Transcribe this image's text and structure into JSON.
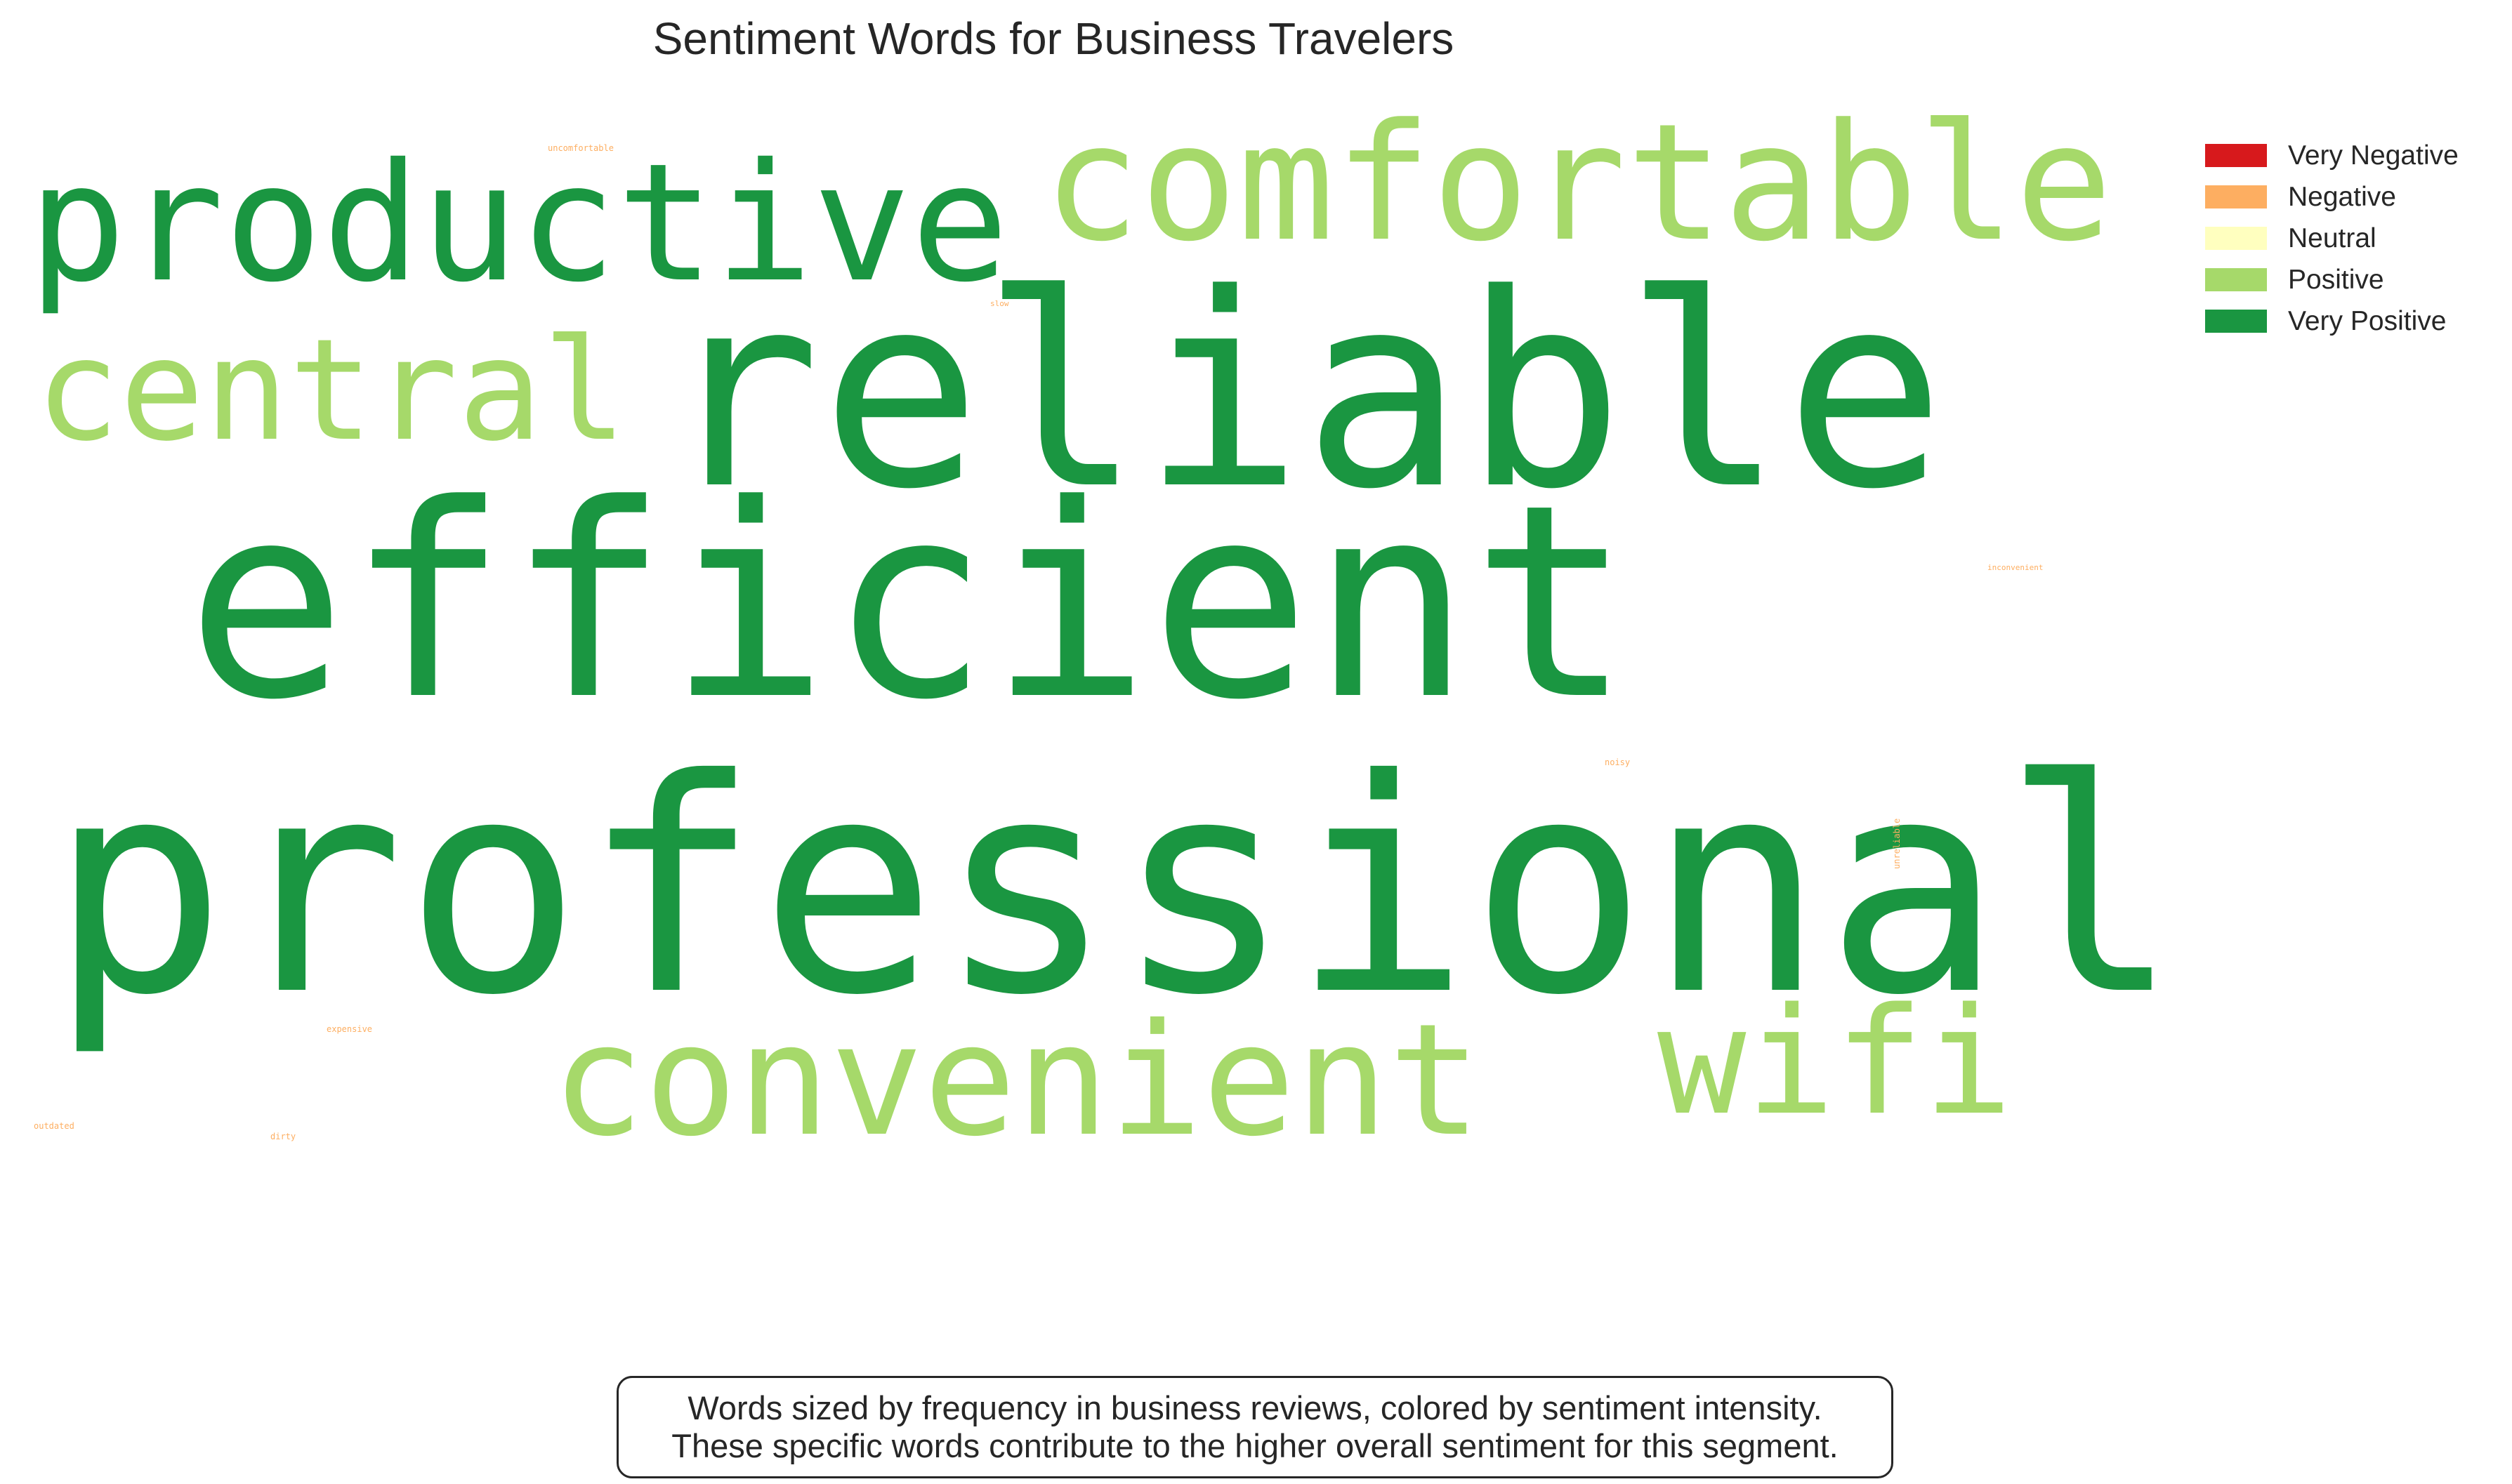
{
  "chart_data": {
    "type": "wordcloud",
    "title": "Sentiment Words for Business Travelers",
    "words": [
      {
        "text": "professional",
        "sentiment": "Very Positive"
      },
      {
        "text": "efficient",
        "sentiment": "Very Positive"
      },
      {
        "text": "reliable",
        "sentiment": "Very Positive"
      },
      {
        "text": "productive",
        "sentiment": "Very Positive"
      },
      {
        "text": "comfortable",
        "sentiment": "Positive"
      },
      {
        "text": "central",
        "sentiment": "Positive"
      },
      {
        "text": "convenient",
        "sentiment": "Positive"
      },
      {
        "text": "wifi",
        "sentiment": "Positive"
      },
      {
        "text": "uncomfortable",
        "sentiment": "Negative"
      },
      {
        "text": "slow",
        "sentiment": "Negative"
      },
      {
        "text": "inconvenient",
        "sentiment": "Negative"
      },
      {
        "text": "noisy",
        "sentiment": "Negative"
      },
      {
        "text": "unreliable",
        "sentiment": "Negative"
      },
      {
        "text": "expensive",
        "sentiment": "Negative"
      },
      {
        "text": "outdated",
        "sentiment": "Negative"
      },
      {
        "text": "dirty",
        "sentiment": "Negative"
      }
    ],
    "legend": {
      "placement": "top-right",
      "entries": [
        {
          "label": "Very Negative",
          "color": "#d7191c"
        },
        {
          "label": "Negative",
          "color": "#fdae61"
        },
        {
          "label": "Neutral",
          "color": "#ffffbf"
        },
        {
          "label": "Positive",
          "color": "#a6d96a"
        },
        {
          "label": "Very Positive",
          "color": "#1a9641"
        }
      ]
    },
    "annotation": {
      "lines": [
        "Words sized by frequency in business reviews, colored by sentiment intensity.",
        "These specific words contribute to the higher overall sentiment for this segment."
      ]
    }
  }
}
